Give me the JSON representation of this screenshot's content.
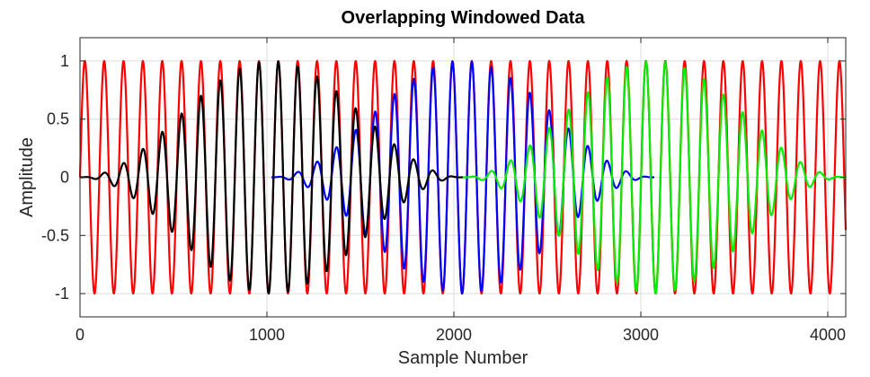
{
  "chart_data": {
    "type": "line",
    "title": "Overlapping Windowed Data",
    "xlabel": "Sample Number",
    "ylabel": "Amplitude",
    "xlim": [
      0,
      4096
    ],
    "ylim": [
      -1.2,
      1.2
    ],
    "xticks": [
      0,
      1000,
      2000,
      3000,
      4000
    ],
    "xtick_labels": [
      "0",
      "1000",
      "2000",
      "3000",
      "4000"
    ],
    "yticks": [
      -1,
      -0.5,
      0,
      0.5,
      1
    ],
    "ytick_labels": [
      "-1",
      "-0.5",
      "0",
      "0.5",
      "1"
    ],
    "grid": true,
    "series": [
      {
        "color": "#ff0000",
        "x_range": [
          0,
          4096
        ],
        "period": 103.5,
        "amplitude": 1.0,
        "envelope": "none"
      },
      {
        "color": "#0000ff",
        "x_range": [
          1024,
          3072
        ],
        "period": 103.5,
        "amplitude": 1.0,
        "envelope": "hann"
      },
      {
        "color": "#00ee00",
        "x_range": [
          2048,
          4096
        ],
        "period": 103.5,
        "amplitude": 1.0,
        "envelope": "hann"
      },
      {
        "color": "#000000",
        "x_range": [
          0,
          2048
        ],
        "period": 103.5,
        "amplitude": 1.0,
        "envelope": "hann"
      }
    ]
  }
}
